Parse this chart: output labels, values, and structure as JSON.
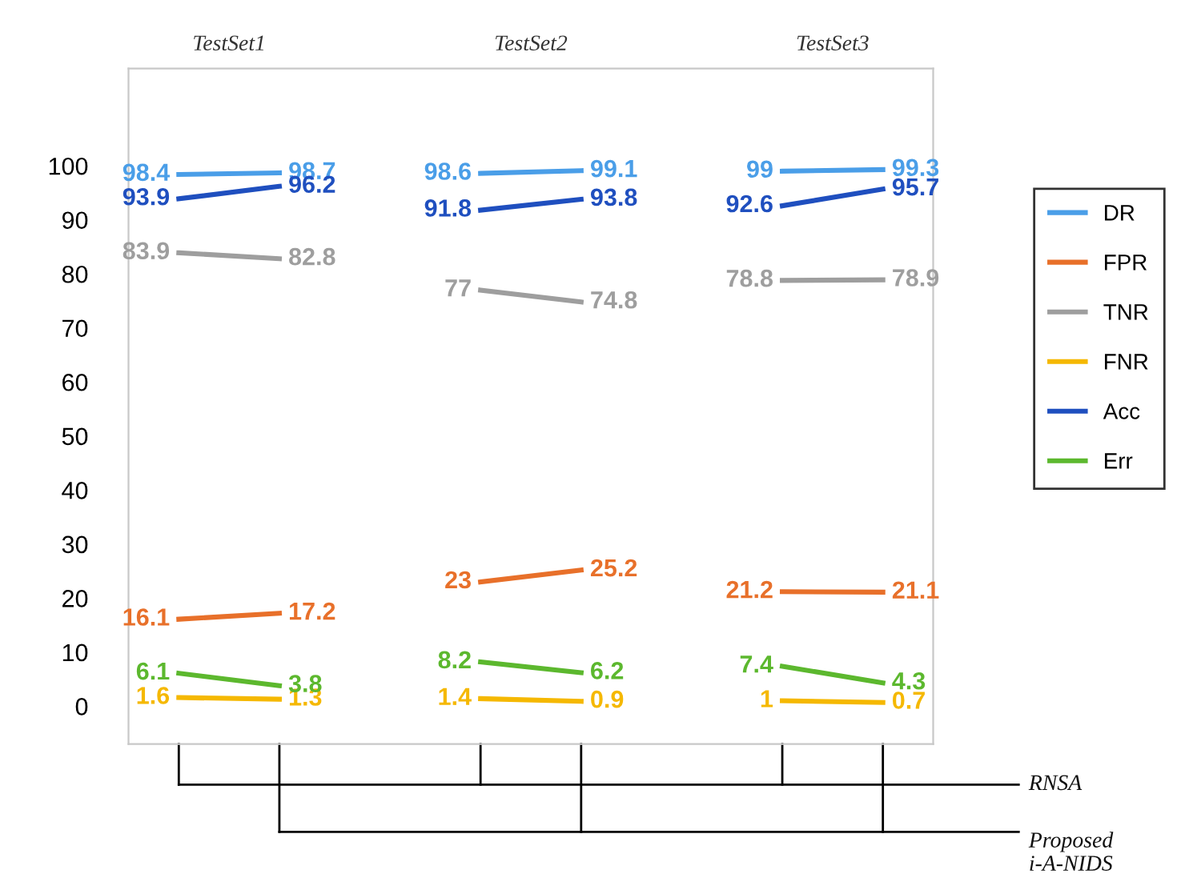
{
  "chart_data": {
    "type": "line",
    "categories": [
      null,
      null,
      null,
      null,
      null,
      null,
      null,
      null
    ],
    "series": [
      {
        "name": "DR",
        "color": "#4a9ee8",
        "values": [
          98.4,
          98.7,
          null,
          98.6,
          99.1,
          null,
          99,
          99.3
        ]
      },
      {
        "name": "FPR",
        "color": "#e8702a",
        "values": [
          16.1,
          17.2,
          null,
          23,
          25.2,
          null,
          21.2,
          21.1
        ]
      },
      {
        "name": "TNR",
        "color": "#9e9e9e",
        "values": [
          83.9,
          82.8,
          null,
          77,
          74.8,
          null,
          78.8,
          78.9
        ]
      },
      {
        "name": "FNR",
        "color": "#f5b800",
        "values": [
          1.6,
          1.3,
          null,
          1.4,
          0.9,
          null,
          1,
          0.7
        ]
      },
      {
        "name": "Acc",
        "color": "#1f4fbf",
        "values": [
          93.9,
          96.2,
          null,
          91.8,
          93.8,
          null,
          92.6,
          95.7
        ]
      },
      {
        "name": "Err",
        "color": "#5cb82e",
        "values": [
          6.1,
          3.8,
          null,
          8.2,
          6.2,
          null,
          7.4,
          4.3
        ]
      }
    ],
    "ylim": [
      -7,
      118
    ],
    "yticks": [
      0,
      10,
      20,
      30,
      40,
      50,
      60,
      70,
      80,
      90,
      100
    ],
    "tick_labels": "y",
    "grid": false,
    "legend": "right",
    "data_labels": true,
    "marker": "none",
    "line_style": "solid",
    "annotations": [
      "TestSet1",
      "TestSet2",
      "TestSet3",
      "RNSA",
      "Proposed\ni-A-NIDS"
    ]
  }
}
